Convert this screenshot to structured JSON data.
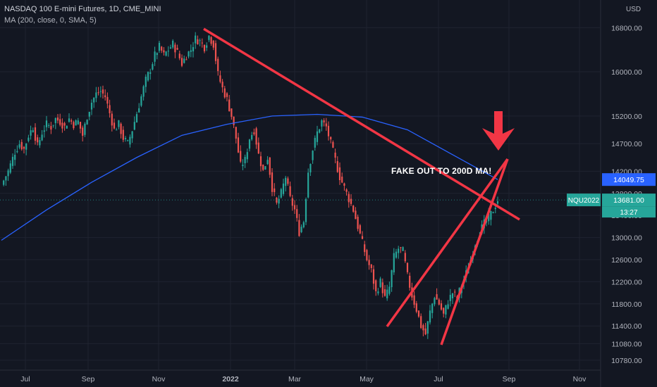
{
  "header": {
    "title": "NASDAQ 100 E-mini Futures, 1D, CME_MINI",
    "indicator": "MA (200, close, 0, SMA, 5)"
  },
  "annotation": "FAKE OUT TO 200D MA!",
  "currency": "USD",
  "colors": {
    "background": "#131722",
    "up": "#26a69a",
    "down": "#ef5350",
    "ma": "#2962ff",
    "trendline": "#f23645",
    "grid": "#1f2330"
  },
  "chart_data": {
    "type": "candlestick",
    "x_ticks": [
      "Jul",
      "Sep",
      "Nov",
      "2022",
      "Mar",
      "May",
      "Jul",
      "Sep",
      "Nov"
    ],
    "y_ticks": [
      16800,
      16000,
      15200,
      14700,
      14200,
      13800,
      13400,
      13000,
      12600,
      12200,
      11800,
      11400,
      11080,
      10780
    ],
    "ylim": [
      10600,
      17300
    ],
    "price_labels": [
      {
        "label": "",
        "value": "14049.75",
        "color": "#2962ff"
      },
      {
        "label": "NQU2022",
        "value": "13681.00",
        "sub": "13:27",
        "color": "#26a69a"
      }
    ],
    "series_close": [
      [
        0,
        13950
      ],
      [
        3,
        14200
      ],
      [
        6,
        14550
      ],
      [
        8,
        14700
      ],
      [
        10,
        14600
      ],
      [
        12,
        14850
      ],
      [
        14,
        15000
      ],
      [
        16,
        14650
      ],
      [
        18,
        14900
      ],
      [
        20,
        15050
      ],
      [
        22,
        15000
      ],
      [
        24,
        15150
      ],
      [
        26,
        15100
      ],
      [
        28,
        15000
      ],
      [
        30,
        15150
      ],
      [
        32,
        15050
      ],
      [
        34,
        15100
      ],
      [
        36,
        14850
      ],
      [
        38,
        15200
      ],
      [
        40,
        15450
      ],
      [
        42,
        15600
      ],
      [
        44,
        15650
      ],
      [
        46,
        15550
      ],
      [
        48,
        15250
      ],
      [
        50,
        14950
      ],
      [
        52,
        15050
      ],
      [
        54,
        14800
      ],
      [
        56,
        14700
      ],
      [
        58,
        14950
      ],
      [
        60,
        15250
      ],
      [
        62,
        15550
      ],
      [
        64,
        15850
      ],
      [
        66,
        16050
      ],
      [
        68,
        16300
      ],
      [
        70,
        16450
      ],
      [
        72,
        16300
      ],
      [
        74,
        16400
      ],
      [
        76,
        16500
      ],
      [
        78,
        16350
      ],
      [
        80,
        16150
      ],
      [
        82,
        16300
      ],
      [
        84,
        16400
      ],
      [
        86,
        16600
      ],
      [
        88,
        16550
      ],
      [
        90,
        16450
      ],
      [
        92,
        16650
      ],
      [
        94,
        16500
      ],
      [
        96,
        15950
      ],
      [
        98,
        15700
      ],
      [
        100,
        15500
      ],
      [
        102,
        15200
      ],
      [
        104,
        14800
      ],
      [
        106,
        14300
      ],
      [
        108,
        14400
      ],
      [
        110,
        14800
      ],
      [
        112,
        14950
      ],
      [
        114,
        14500
      ],
      [
        116,
        14200
      ],
      [
        118,
        14450
      ],
      [
        120,
        13900
      ],
      [
        122,
        13600
      ],
      [
        124,
        13800
      ],
      [
        126,
        14100
      ],
      [
        128,
        13700
      ],
      [
        130,
        13500
      ],
      [
        132,
        13100
      ],
      [
        134,
        13300
      ],
      [
        136,
        14200
      ],
      [
        138,
        14600
      ],
      [
        140,
        14900
      ],
      [
        142,
        15100
      ],
      [
        144,
        15000
      ],
      [
        146,
        14700
      ],
      [
        148,
        14400
      ],
      [
        150,
        14100
      ],
      [
        152,
        13900
      ],
      [
        154,
        13700
      ],
      [
        156,
        13500
      ],
      [
        158,
        13200
      ],
      [
        160,
        12900
      ],
      [
        162,
        12600
      ],
      [
        164,
        12400
      ],
      [
        166,
        12000
      ],
      [
        168,
        12200
      ],
      [
        170,
        11900
      ],
      [
        172,
        12100
      ],
      [
        174,
        12650
      ],
      [
        176,
        12800
      ],
      [
        178,
        12750
      ],
      [
        180,
        12300
      ],
      [
        182,
        11950
      ],
      [
        184,
        11700
      ],
      [
        186,
        11400
      ],
      [
        188,
        11250
      ],
      [
        190,
        11650
      ],
      [
        192,
        11950
      ],
      [
        194,
        11800
      ],
      [
        196,
        11600
      ],
      [
        198,
        11850
      ],
      [
        200,
        12000
      ],
      [
        202,
        11900
      ],
      [
        204,
        12150
      ],
      [
        206,
        12350
      ],
      [
        208,
        12600
      ],
      [
        210,
        12900
      ],
      [
        212,
        13100
      ],
      [
        214,
        13250
      ],
      [
        216,
        13350
      ],
      [
        218,
        13500
      ],
      [
        220,
        13681
      ]
    ],
    "ma200": [
      [
        0,
        12950
      ],
      [
        20,
        13500
      ],
      [
        40,
        14000
      ],
      [
        60,
        14450
      ],
      [
        80,
        14850
      ],
      [
        100,
        15050
      ],
      [
        120,
        15200
      ],
      [
        140,
        15230
      ],
      [
        160,
        15180
      ],
      [
        180,
        14950
      ],
      [
        200,
        14500
      ],
      [
        220,
        14050
      ]
    ]
  }
}
